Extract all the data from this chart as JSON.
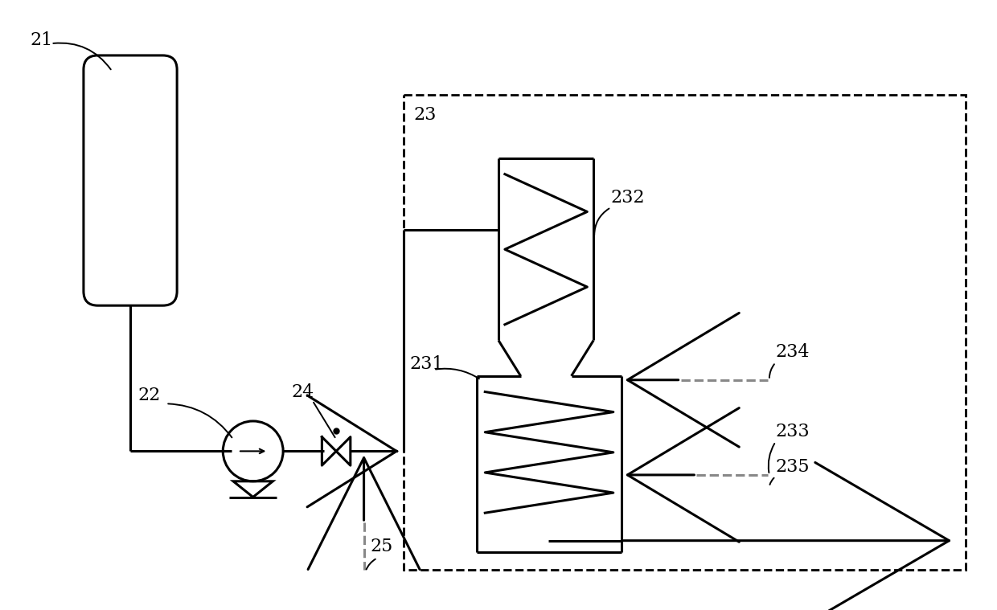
{
  "bg_color": "#ffffff",
  "black": "#000000",
  "gray": "#888888",
  "font_size": 16,
  "fig_w": 12.4,
  "fig_h": 7.59,
  "dpi": 100,
  "lw": 2.2,
  "lw_thin": 1.5
}
